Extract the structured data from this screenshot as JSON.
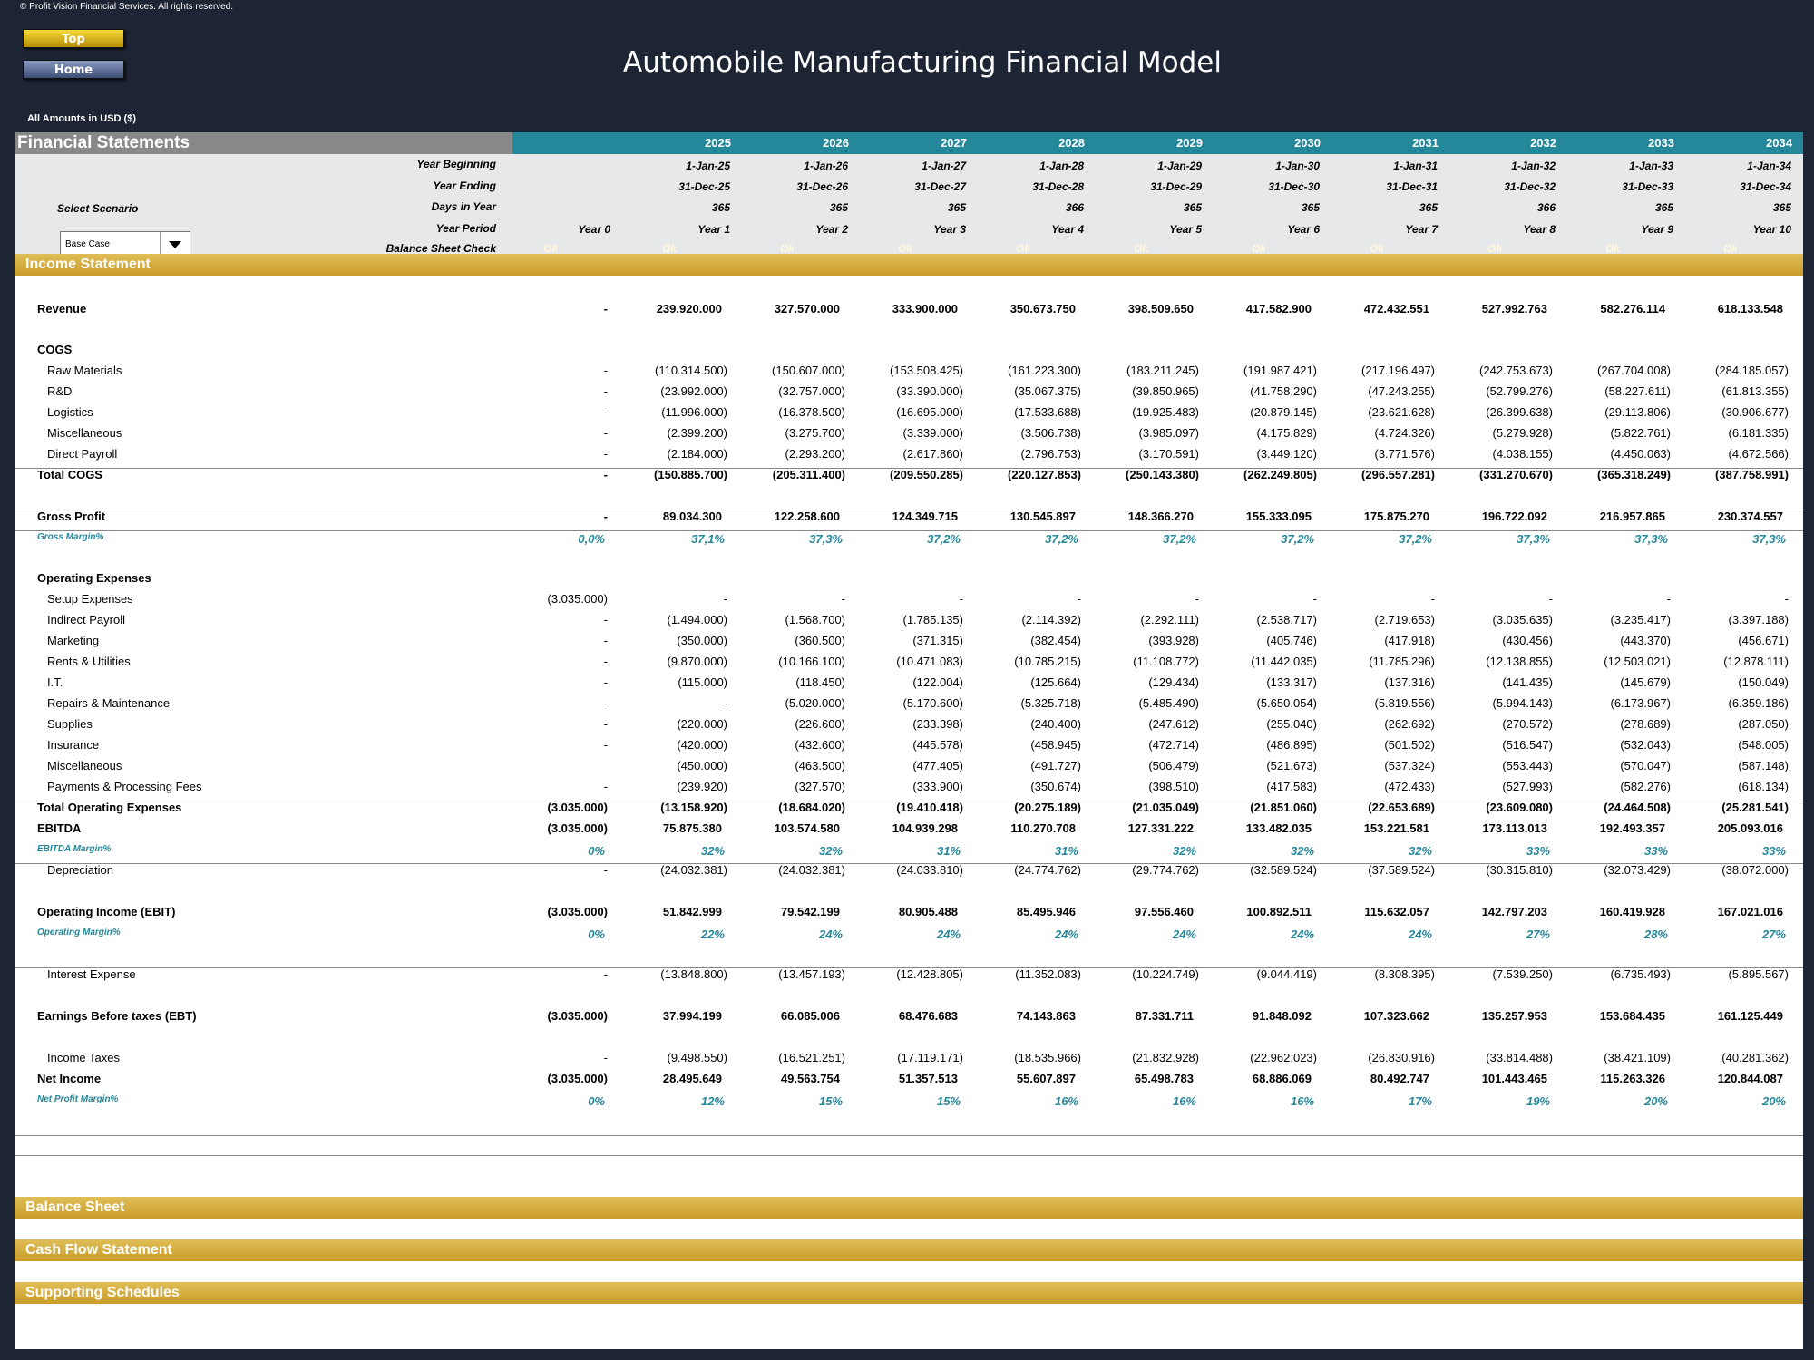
{
  "copyright": "© Profit Vision Financial Services. All rights reserved.",
  "nav": {
    "top": "Top",
    "home": "Home"
  },
  "title": "Automobile Manufacturing Financial Model",
  "amounts": "All Amounts in  USD ($)",
  "fs_title": "Financial Statements",
  "scenario": {
    "label": "Select Scenario",
    "value": "Base Case"
  },
  "header_labels": {
    "year_beginning": "Year Beginning",
    "year_ending": "Year Ending",
    "days": "Days in Year",
    "period": "Year Period",
    "check": "Balance Sheet Check"
  },
  "years": [
    "2025",
    "2026",
    "2027",
    "2028",
    "2029",
    "2030",
    "2031",
    "2032",
    "2033",
    "2034"
  ],
  "year_beginning": [
    "1-Jan-25",
    "1-Jan-26",
    "1-Jan-27",
    "1-Jan-28",
    "1-Jan-29",
    "1-Jan-30",
    "1-Jan-31",
    "1-Jan-32",
    "1-Jan-33",
    "1-Jan-34"
  ],
  "year_ending": [
    "31-Dec-25",
    "31-Dec-26",
    "31-Dec-27",
    "31-Dec-28",
    "31-Dec-29",
    "31-Dec-30",
    "31-Dec-31",
    "31-Dec-32",
    "31-Dec-33",
    "31-Dec-34"
  ],
  "days": [
    "365",
    "365",
    "365",
    "366",
    "365",
    "365",
    "365",
    "366",
    "365",
    "365"
  ],
  "periods": [
    "Year 0",
    "Year 1",
    "Year 2",
    "Year 3",
    "Year 4",
    "Year 5",
    "Year 6",
    "Year 7",
    "Year 8",
    "Year 9",
    "Year 10"
  ],
  "checks": [
    "Ok",
    "Ok",
    "Ok",
    "Ok",
    "Ok",
    "Ok",
    "Ok",
    "Ok",
    "Ok",
    "Ok",
    "Ok"
  ],
  "sections": {
    "income": "Income Statement",
    "balance": "Balance Sheet",
    "cashflow": "Cash Flow Statement",
    "supporting": "Supporting Schedules"
  },
  "rows": [
    {
      "label": "Revenue",
      "style": "bold",
      "values": [
        "-",
        "239.920.000",
        "327.570.000",
        "333.900.000",
        "350.673.750",
        "398.509.650",
        "417.582.900",
        "472.432.551",
        "527.992.763",
        "582.276.114",
        "618.133.548"
      ]
    },
    {
      "label": "COGS",
      "style": "heading"
    },
    {
      "label": "Raw Materials",
      "style": "item",
      "values": [
        "-",
        "(110.314.500)",
        "(150.607.000)",
        "(153.508.425)",
        "(161.223.300)",
        "(183.211.245)",
        "(191.987.421)",
        "(217.196.497)",
        "(242.753.673)",
        "(267.704.008)",
        "(284.185.057)"
      ]
    },
    {
      "label": "R&D",
      "style": "item",
      "values": [
        "-",
        "(23.992.000)",
        "(32.757.000)",
        "(33.390.000)",
        "(35.067.375)",
        "(39.850.965)",
        "(41.758.290)",
        "(47.243.255)",
        "(52.799.276)",
        "(58.227.611)",
        "(61.813.355)"
      ]
    },
    {
      "label": "Logistics",
      "style": "item",
      "values": [
        "-",
        "(11.996.000)",
        "(16.378.500)",
        "(16.695.000)",
        "(17.533.688)",
        "(19.925.483)",
        "(20.879.145)",
        "(23.621.628)",
        "(26.399.638)",
        "(29.113.806)",
        "(30.906.677)"
      ]
    },
    {
      "label": "Miscellaneous",
      "style": "item",
      "values": [
        "-",
        "(2.399.200)",
        "(3.275.700)",
        "(3.339.000)",
        "(3.506.738)",
        "(3.985.097)",
        "(4.175.829)",
        "(4.724.326)",
        "(5.279.928)",
        "(5.822.761)",
        "(6.181.335)"
      ]
    },
    {
      "label": "Direct Payroll",
      "style": "item",
      "values": [
        "-",
        "(2.184.000)",
        "(2.293.200)",
        "(2.617.860)",
        "(2.796.753)",
        "(3.170.591)",
        "(3.449.120)",
        "(3.771.576)",
        "(4.038.155)",
        "(4.450.063)",
        "(4.672.566)"
      ]
    },
    {
      "label": "Total COGS",
      "style": "bold",
      "values": [
        "-",
        "(150.885.700)",
        "(205.311.400)",
        "(209.550.285)",
        "(220.127.853)",
        "(250.143.380)",
        "(262.249.805)",
        "(296.557.281)",
        "(331.270.670)",
        "(365.318.249)",
        "(387.758.991)"
      ]
    },
    {
      "label": "Gross Profit",
      "style": "bold",
      "values": [
        "-",
        "89.034.300",
        "122.258.600",
        "124.349.715",
        "130.545.897",
        "148.366.270",
        "155.333.095",
        "175.875.270",
        "196.722.092",
        "216.957.865",
        "230.374.557"
      ]
    },
    {
      "label": "Gross Margin%",
      "style": "margin",
      "values": [
        "0,0%",
        "37,1%",
        "37,3%",
        "37,2%",
        "37,2%",
        "37,2%",
        "37,2%",
        "37,2%",
        "37,3%",
        "37,3%",
        "37,3%"
      ]
    },
    {
      "label": "Operating Expenses",
      "style": "boldlabel"
    },
    {
      "label": "Setup Expenses",
      "style": "item",
      "values": [
        "(3.035.000)",
        "-",
        "-",
        "-",
        "-",
        "-",
        "-",
        "-",
        "-",
        "-",
        "-"
      ]
    },
    {
      "label": "Indirect Payroll",
      "style": "item",
      "values": [
        "-",
        "(1.494.000)",
        "(1.568.700)",
        "(1.785.135)",
        "(2.114.392)",
        "(2.292.111)",
        "(2.538.717)",
        "(2.719.653)",
        "(3.035.635)",
        "(3.235.417)",
        "(3.397.188)"
      ]
    },
    {
      "label": "Marketing",
      "style": "item",
      "values": [
        "-",
        "(350.000)",
        "(360.500)",
        "(371.315)",
        "(382.454)",
        "(393.928)",
        "(405.746)",
        "(417.918)",
        "(430.456)",
        "(443.370)",
        "(456.671)"
      ]
    },
    {
      "label": "Rents & Utilities",
      "style": "item",
      "values": [
        "-",
        "(9.870.000)",
        "(10.166.100)",
        "(10.471.083)",
        "(10.785.215)",
        "(11.108.772)",
        "(11.442.035)",
        "(11.785.296)",
        "(12.138.855)",
        "(12.503.021)",
        "(12.878.111)"
      ]
    },
    {
      "label": "I.T.",
      "style": "item",
      "values": [
        "-",
        "(115.000)",
        "(118.450)",
        "(122.004)",
        "(125.664)",
        "(129.434)",
        "(133.317)",
        "(137.316)",
        "(141.435)",
        "(145.679)",
        "(150.049)"
      ]
    },
    {
      "label": "Repairs & Maintenance",
      "style": "item",
      "values": [
        "-",
        "-",
        "(5.020.000)",
        "(5.170.600)",
        "(5.325.718)",
        "(5.485.490)",
        "(5.650.054)",
        "(5.819.556)",
        "(5.994.143)",
        "(6.173.967)",
        "(6.359.186)"
      ]
    },
    {
      "label": "Supplies",
      "style": "item",
      "values": [
        "-",
        "(220.000)",
        "(226.600)",
        "(233.398)",
        "(240.400)",
        "(247.612)",
        "(255.040)",
        "(262.692)",
        "(270.572)",
        "(278.689)",
        "(287.050)"
      ]
    },
    {
      "label": "Insurance",
      "style": "item",
      "values": [
        "-",
        "(420.000)",
        "(432.600)",
        "(445.578)",
        "(458.945)",
        "(472.714)",
        "(486.895)",
        "(501.502)",
        "(516.547)",
        "(532.043)",
        "(548.005)"
      ]
    },
    {
      "label": "Miscellaneous",
      "style": "item",
      "values": [
        "",
        "(450.000)",
        "(463.500)",
        "(477.405)",
        "(491.727)",
        "(506.479)",
        "(521.673)",
        "(537.324)",
        "(553.443)",
        "(570.047)",
        "(587.148)"
      ]
    },
    {
      "label": "Payments & Processing Fees",
      "style": "item",
      "values": [
        "-",
        "(239.920)",
        "(327.570)",
        "(333.900)",
        "(350.674)",
        "(398.510)",
        "(417.583)",
        "(472.433)",
        "(527.993)",
        "(582.276)",
        "(618.134)"
      ]
    },
    {
      "label": "Total Operating Expenses",
      "style": "bold",
      "values": [
        "(3.035.000)",
        "(13.158.920)",
        "(18.684.020)",
        "(19.410.418)",
        "(20.275.189)",
        "(21.035.049)",
        "(21.851.060)",
        "(22.653.689)",
        "(23.609.080)",
        "(24.464.508)",
        "(25.281.541)"
      ]
    },
    {
      "label": "EBITDA",
      "style": "bold",
      "values": [
        "(3.035.000)",
        "75.875.380",
        "103.574.580",
        "104.939.298",
        "110.270.708",
        "127.331.222",
        "133.482.035",
        "153.221.581",
        "173.113.013",
        "192.493.357",
        "205.093.016"
      ]
    },
    {
      "label": "EBITDA Margin%",
      "style": "margin",
      "values": [
        "0%",
        "32%",
        "32%",
        "31%",
        "31%",
        "32%",
        "32%",
        "32%",
        "33%",
        "33%",
        "33%"
      ]
    },
    {
      "label": "Depreciation",
      "style": "item",
      "values": [
        "-",
        "(24.032.381)",
        "(24.032.381)",
        "(24.033.810)",
        "(24.774.762)",
        "(29.774.762)",
        "(32.589.524)",
        "(37.589.524)",
        "(30.315.810)",
        "(32.073.429)",
        "(38.072.000)"
      ]
    },
    {
      "label": "Operating Income (EBIT)",
      "style": "bold",
      "values": [
        "(3.035.000)",
        "51.842.999",
        "79.542.199",
        "80.905.488",
        "85.495.946",
        "97.556.460",
        "100.892.511",
        "115.632.057",
        "142.797.203",
        "160.419.928",
        "167.021.016"
      ]
    },
    {
      "label": "Operating Margin%",
      "style": "margin",
      "values": [
        "0%",
        "22%",
        "24%",
        "24%",
        "24%",
        "24%",
        "24%",
        "24%",
        "27%",
        "28%",
        "27%"
      ]
    },
    {
      "label": "Interest Expense",
      "style": "item",
      "values": [
        "-",
        "(13.848.800)",
        "(13.457.193)",
        "(12.428.805)",
        "(11.352.083)",
        "(10.224.749)",
        "(9.044.419)",
        "(8.308.395)",
        "(7.539.250)",
        "(6.735.493)",
        "(5.895.567)"
      ]
    },
    {
      "label": "Earnings Before taxes (EBT)",
      "style": "bold",
      "values": [
        "(3.035.000)",
        "37.994.199",
        "66.085.006",
        "68.476.683",
        "74.143.863",
        "87.331.711",
        "91.848.092",
        "107.323.662",
        "135.257.953",
        "153.684.435",
        "161.125.449"
      ]
    },
    {
      "label": "Income Taxes",
      "style": "item",
      "values": [
        "-",
        "(9.498.550)",
        "(16.521.251)",
        "(17.119.171)",
        "(18.535.966)",
        "(21.832.928)",
        "(22.962.023)",
        "(26.830.916)",
        "(33.814.488)",
        "(38.421.109)",
        "(40.281.362)"
      ]
    },
    {
      "label": "Net Income",
      "style": "bold",
      "values": [
        "(3.035.000)",
        "28.495.649",
        "49.563.754",
        "51.357.513",
        "55.607.897",
        "65.498.783",
        "68.886.069",
        "80.492.747",
        "101.443.465",
        "115.263.326",
        "120.844.087"
      ]
    },
    {
      "label": "Net Profit Margin%",
      "style": "margin",
      "values": [
        "0%",
        "12%",
        "15%",
        "15%",
        "16%",
        "16%",
        "16%",
        "17%",
        "19%",
        "20%",
        "20%"
      ]
    }
  ]
}
